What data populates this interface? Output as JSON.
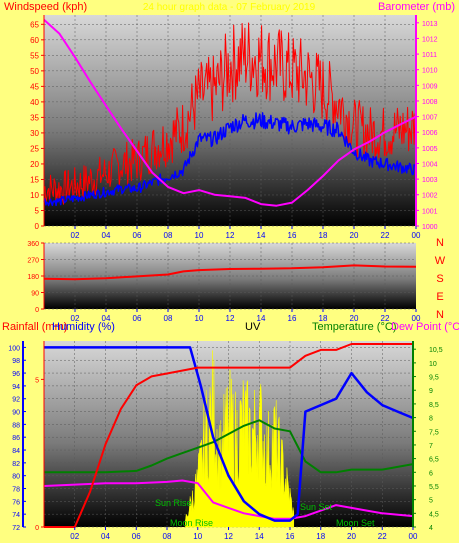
{
  "panel1": {
    "left_label": "Windspeed (kph)",
    "right_label": "Barometer (mb)",
    "title": "24 hour graph data - 07 February 2019",
    "wind_axis": [
      0,
      5,
      10,
      15,
      20,
      25,
      30,
      35,
      40,
      45,
      50,
      55,
      60,
      65
    ],
    "baro_axis": [
      1000,
      1001,
      1002,
      1003,
      1004,
      1005,
      1006,
      1007,
      1008,
      1009,
      1010,
      1011,
      1012,
      1013
    ],
    "hours": [
      "02",
      "04",
      "06",
      "08",
      "10",
      "12",
      "14",
      "16",
      "18",
      "20",
      "22",
      "00"
    ]
  },
  "panel2": {
    "axis": [
      0,
      90,
      180,
      270,
      360
    ],
    "compass": [
      "N",
      "W",
      "S",
      "E",
      "N"
    ],
    "hours": [
      "02",
      "04",
      "06",
      "08",
      "10",
      "12",
      "14",
      "16",
      "18",
      "20",
      "22",
      "00"
    ]
  },
  "panel3": {
    "rain_label": "Rainfall (mm)",
    "humidity_label": "Humidity (%)",
    "uv_label": "UV",
    "temp_label": "Temperature (°C)",
    "dew_label": "Dew Point (°C)",
    "humidity_axis": [
      72,
      74,
      76,
      78,
      80,
      82,
      84,
      86,
      88,
      90,
      92,
      94,
      96,
      98,
      100
    ],
    "rain_axis": [
      0,
      5
    ],
    "temp_axis": [
      "4",
      "4,5",
      "5",
      "5,5",
      "6",
      "6,5",
      "7",
      "7,5",
      "8",
      "8,5",
      "9",
      "9,5",
      "10",
      "10,5"
    ],
    "hours": [
      "02",
      "04",
      "06",
      "08",
      "10",
      "12",
      "14",
      "16",
      "18",
      "20",
      "22",
      "00"
    ],
    "annotations": [
      "Sun Rise",
      "Moon Rise",
      "Sun Set",
      "Moon Set"
    ]
  },
  "colors": {
    "wind_gust": "#ff0000",
    "wind_avg": "#0000ff",
    "barometer": "#ff00ff",
    "humidity": "#0000ff",
    "rainfall": "#ff0000",
    "uv": "#ffff00",
    "temperature": "#008000",
    "dewpoint": "#ff00ff"
  },
  "chart_data": [
    {
      "type": "line",
      "x_unit": "hour",
      "xlim": [
        0,
        24
      ],
      "series": [
        {
          "name": "Windspeed (kph)",
          "axis": "left",
          "ylim": [
            0,
            68
          ],
          "values": [
            [
              0,
              8
            ],
            [
              1,
              8
            ],
            [
              2,
              9
            ],
            [
              3,
              10
            ],
            [
              4,
              11
            ],
            [
              5,
              12
            ],
            [
              6,
              12
            ],
            [
              7,
              14
            ],
            [
              8,
              16
            ],
            [
              9,
              18
            ],
            [
              10,
              28
            ],
            [
              11,
              28
            ],
            [
              12,
              32
            ],
            [
              13,
              34
            ],
            [
              14,
              34
            ],
            [
              15,
              33
            ],
            [
              16,
              32
            ],
            [
              17,
              33
            ],
            [
              18,
              32
            ],
            [
              19,
              31
            ],
            [
              20,
              24
            ],
            [
              21,
              21
            ],
            [
              22,
              20
            ],
            [
              23,
              19
            ],
            [
              24,
              18
            ]
          ]
        },
        {
          "name": "Windspeed (kph)",
          "axis": "left",
          "ylim": [
            0,
            68
          ],
          "values": [
            [
              0,
              12
            ],
            [
              1,
              12
            ],
            [
              2,
              13
            ],
            [
              3,
              15
            ],
            [
              4,
              17
            ],
            [
              5,
              20
            ],
            [
              6,
              21
            ],
            [
              7,
              25
            ],
            [
              8,
              28
            ],
            [
              9,
              32
            ],
            [
              10,
              42
            ],
            [
              11,
              44
            ],
            [
              12,
              52
            ],
            [
              13,
              55
            ],
            [
              14,
              54
            ],
            [
              15,
              52
            ],
            [
              16,
              50
            ],
            [
              17,
              48
            ],
            [
              18,
              44
            ],
            [
              19,
              40
            ],
            [
              20,
              32
            ],
            [
              21,
              30
            ],
            [
              22,
              30
            ],
            [
              23,
              31
            ],
            [
              24,
              32
            ]
          ]
        },
        {
          "name": "Barometer (mb)",
          "axis": "right",
          "ylim": [
            1000,
            1013.5
          ],
          "values": [
            [
              0,
              1013.2
            ],
            [
              1,
              1012.3
            ],
            [
              2,
              1010.8
            ],
            [
              3,
              1009.2
            ],
            [
              4,
              1007.7
            ],
            [
              5,
              1006.2
            ],
            [
              6,
              1004.8
            ],
            [
              7,
              1003.4
            ],
            [
              8,
              1002.5
            ],
            [
              9,
              1002.1
            ],
            [
              10,
              1002.3
            ],
            [
              11,
              1002.0
            ],
            [
              12,
              1001.9
            ],
            [
              13,
              1001.8
            ],
            [
              14,
              1001.4
            ],
            [
              15,
              1001.3
            ],
            [
              16,
              1001.5
            ],
            [
              17,
              1002.3
            ],
            [
              18,
              1003.2
            ],
            [
              19,
              1004.2
            ],
            [
              20,
              1004.9
            ],
            [
              21,
              1005.4
            ],
            [
              22,
              1006.0
            ],
            [
              23,
              1006.5
            ],
            [
              24,
              1007.0
            ]
          ]
        }
      ]
    },
    {
      "type": "line",
      "xlim": [
        0,
        24
      ],
      "ylim": [
        0,
        360
      ],
      "series": [
        {
          "name": "Wind direction",
          "values": [
            [
              0,
              165
            ],
            [
              2,
              162
            ],
            [
              4,
              168
            ],
            [
              6,
              178
            ],
            [
              8,
              188
            ],
            [
              9,
              205
            ],
            [
              10,
              212
            ],
            [
              12,
              218
            ],
            [
              14,
              220
            ],
            [
              16,
              222
            ],
            [
              18,
              228
            ],
            [
              20,
              238
            ],
            [
              22,
              232
            ],
            [
              24,
              230
            ]
          ]
        }
      ]
    },
    {
      "type": "line",
      "xlim": [
        0,
        24
      ],
      "series": [
        {
          "name": "Humidity (%)",
          "axis": "humidity",
          "ylim": [
            72,
            101
          ],
          "values": [
            [
              0,
              100
            ],
            [
              9.5,
              100
            ],
            [
              10.2,
              94
            ],
            [
              11,
              86
            ],
            [
              12,
              80
            ],
            [
              13,
              76
            ],
            [
              14,
              74
            ],
            [
              15,
              73
            ],
            [
              16,
              73
            ],
            [
              16.5,
              74
            ],
            [
              17,
              90
            ],
            [
              18,
              91
            ],
            [
              19,
              92
            ],
            [
              20,
              96
            ],
            [
              21,
              93
            ],
            [
              22,
              91
            ],
            [
              23,
              90
            ],
            [
              24,
              89
            ]
          ]
        },
        {
          "name": "Rainfall (mm)",
          "axis": "rain",
          "ylim": [
            0,
            6.3
          ],
          "values": [
            [
              0,
              0
            ],
            [
              2,
              0
            ],
            [
              3,
              1.2
            ],
            [
              4,
              2.8
            ],
            [
              5,
              4.0
            ],
            [
              6,
              4.8
            ],
            [
              7,
              5.1
            ],
            [
              8,
              5.2
            ],
            [
              10,
              5.4
            ],
            [
              12,
              5.4
            ],
            [
              14,
              5.4
            ],
            [
              16,
              5.4
            ],
            [
              17,
              5.8
            ],
            [
              18,
              6.0
            ],
            [
              19,
              6.0
            ],
            [
              20,
              6.2
            ],
            [
              24,
              6.2
            ]
          ]
        },
        {
          "name": "Temperature (°C)",
          "axis": "temp",
          "ylim": [
            4,
            10.8
          ],
          "values": [
            [
              0,
              6.0
            ],
            [
              2,
              6.0
            ],
            [
              4,
              6.0
            ],
            [
              6,
              6.05
            ],
            [
              7,
              6.25
            ],
            [
              8,
              6.5
            ],
            [
              9,
              6.7
            ],
            [
              10,
              6.9
            ],
            [
              11,
              7.1
            ],
            [
              12,
              7.4
            ],
            [
              13,
              7.7
            ],
            [
              14,
              7.9
            ],
            [
              15,
              7.6
            ],
            [
              16,
              7.5
            ],
            [
              17,
              6.4
            ],
            [
              18,
              6.0
            ],
            [
              19,
              6.0
            ],
            [
              20,
              6.1
            ],
            [
              22,
              6.1
            ],
            [
              24,
              6.3
            ]
          ]
        },
        {
          "name": "Dew Point (°C)",
          "axis": "temp",
          "ylim": [
            4,
            10.8
          ],
          "values": [
            [
              0,
              5.5
            ],
            [
              2,
              5.55
            ],
            [
              4,
              5.6
            ],
            [
              6,
              5.6
            ],
            [
              8,
              5.65
            ],
            [
              9,
              5.7
            ],
            [
              10,
              5.6
            ],
            [
              11,
              4.9
            ],
            [
              12,
              4.7
            ],
            [
              13,
              4.5
            ],
            [
              14,
              4.4
            ],
            [
              15,
              4.3
            ],
            [
              16,
              4.3
            ],
            [
              17,
              4.4
            ],
            [
              18,
              4.6
            ],
            [
              19,
              4.8
            ],
            [
              20,
              4.7
            ],
            [
              21,
              4.6
            ],
            [
              22,
              4.5
            ],
            [
              24,
              4.4
            ]
          ]
        },
        {
          "name": "UV",
          "axis": "uv",
          "ylim": [
            0,
            10
          ],
          "values": [
            [
              9.2,
              0.5
            ],
            [
              10,
              3
            ],
            [
              10.5,
              6
            ],
            [
              11,
              8
            ],
            [
              11.5,
              5
            ],
            [
              12,
              7
            ],
            [
              12.5,
              6
            ],
            [
              13,
              7
            ],
            [
              13.5,
              6
            ],
            [
              14,
              7
            ],
            [
              14.5,
              5
            ],
            [
              15,
              6
            ],
            [
              15.5,
              4
            ],
            [
              16,
              2
            ],
            [
              16.3,
              0.5
            ]
          ]
        }
      ]
    }
  ]
}
